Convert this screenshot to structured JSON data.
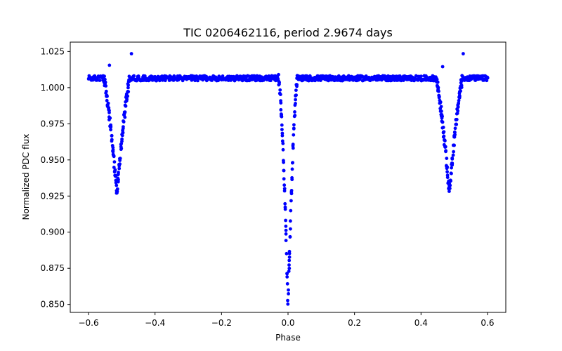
{
  "chart_data": {
    "type": "scatter",
    "title": "TIC 0206462116, period 2.9674 days",
    "xlabel": "Phase",
    "ylabel": "Normalized PDC flux",
    "xlim": [
      -0.655,
      0.655
    ],
    "ylim": [
      0.8445,
      1.0315
    ],
    "x_ticks": [
      -0.6,
      -0.4,
      -0.2,
      0.0,
      0.2,
      0.4,
      0.6
    ],
    "x_tick_labels": [
      "−0.6",
      "−0.4",
      "−0.2",
      "0.0",
      "0.2",
      "0.4",
      "0.6"
    ],
    "y_ticks": [
      0.85,
      0.875,
      0.9,
      0.925,
      0.95,
      0.975,
      1.0,
      1.025
    ],
    "y_tick_labels": [
      "0.850",
      "0.875",
      "0.900",
      "0.925",
      "0.950",
      "0.975",
      "1.000",
      "1.025"
    ],
    "grid": false,
    "marker_color": "#0000ff",
    "series": [
      {
        "name": "PDC flux",
        "baseline": 1.0065,
        "phase_range": [
          -0.6,
          0.6
        ],
        "primary_eclipse": {
          "center": 0.0,
          "min_flux": 0.8465,
          "half_width": 0.03
        },
        "secondary_eclipses": [
          {
            "center": -0.515,
            "min_flux": 0.928,
            "half_width": 0.04
          },
          {
            "center": 0.485,
            "min_flux": 0.928,
            "half_width": 0.04
          }
        ],
        "outliers": [
          {
            "x": -0.471,
            "y": 1.0235
          },
          {
            "x": 0.527,
            "y": 1.0235
          },
          {
            "x": -0.537,
            "y": 1.0155
          },
          {
            "x": 0.465,
            "y": 1.0145
          }
        ]
      }
    ]
  }
}
